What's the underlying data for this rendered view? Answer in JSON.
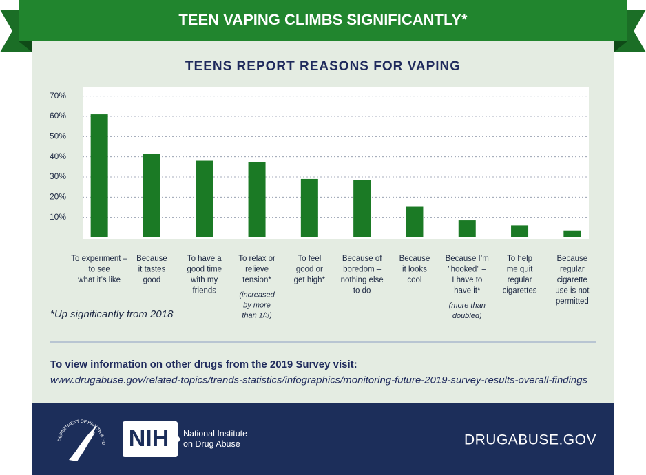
{
  "banner": {
    "title": "TEEN VAPING CLIMBS SIGNIFICANTLY*"
  },
  "chart_data": {
    "type": "bar",
    "title": "TEENS REPORT REASONS FOR VAPING",
    "categories": [
      "To experiment –\nto see\nwhat it’s like",
      "Because\nit tastes\ngood",
      "To have a\ngood time\nwith my\nfriends",
      "To relax or\nrelieve\ntension*",
      "To feel\ngood or\nget high*",
      "Because of\nboredom –\nnothing else\nto do",
      "Because\nit looks\ncool",
      "Because I’m\n\"hooked\" –\nI have to\nhave it*",
      "To help\nme quit\nregular\ncigarettes",
      "Because\nregular\ncigarette\nuse is not\npermitted"
    ],
    "category_notes": [
      null,
      null,
      null,
      "(increased\nby more\nthan 1/3)",
      null,
      null,
      null,
      "(more than\ndoubled)",
      null,
      null
    ],
    "values": [
      61,
      41.5,
      38,
      37.5,
      29,
      28.5,
      15.5,
      8.5,
      6,
      3.5
    ],
    "color": "#1b7a25",
    "ylim": [
      0,
      75
    ],
    "yticks": [
      {
        "value": 10,
        "label": "10%"
      },
      {
        "value": 20,
        "label": "20%"
      },
      {
        "value": 30,
        "label": "30%"
      },
      {
        "value": 40,
        "label": "40%"
      },
      {
        "value": 50,
        "label": "50%"
      },
      {
        "value": 60,
        "label": "60%"
      },
      {
        "value": 70,
        "label": "70%"
      }
    ],
    "grid": true
  },
  "footnote": "*Up significantly from 2018",
  "footer": {
    "heading": "To view information on other drugs from the 2019 Survey visit:",
    "url": "www.drugabuse.gov/related-topics/trends-statistics/infographics/monitoring-future-2019-survey-results-overall-findings"
  },
  "branding": {
    "hhs_seal": "DEPARTMENT OF HEALTH & HUMAN SERVICES • USA",
    "nih": "NIH",
    "institute": "National Institute\non Drug Abuse",
    "site": "DRUGABUSE.GOV"
  }
}
